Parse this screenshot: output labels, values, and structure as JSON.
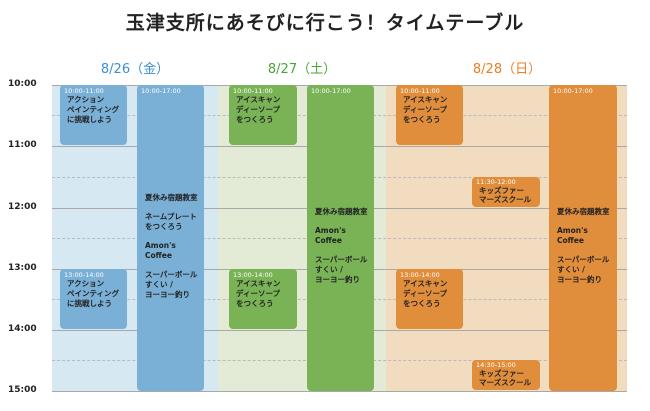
{
  "title": "玉津支所にあそびに行こう！タイムテーブル",
  "colors": {
    "blue": "#7aafd6",
    "green": "#7ab356",
    "orange": "#e08d3c"
  },
  "times": [
    "10:00",
    "11:00",
    "12:00",
    "13:00",
    "14:00",
    "15:00"
  ],
  "days": [
    {
      "label": "8/26（金）",
      "events": [
        {
          "time": "10:00-11:00",
          "name": "アクション\nペインティング\nに挑戦しよう"
        },
        {
          "time": "13:00-14:00",
          "name": "アクション\nペインティング\nに挑戦しよう"
        },
        {
          "time": "10:00-17:00",
          "items": [
            "夏休み宿題教室",
            "ネームプレート\nをつくろう",
            "Amon's Coffee",
            "スーパーボール\nすくい /\nヨーヨー釣り"
          ]
        }
      ]
    },
    {
      "label": "8/27（土）",
      "events": [
        {
          "time": "10:00-11:00",
          "name": "アイスキャン\nディーソープ\nをつくろう"
        },
        {
          "time": "13:00-14:00",
          "name": "アイスキャン\nディーソープ\nをつくろう"
        },
        {
          "time": "10:00-17:00",
          "items": [
            "夏休み宿題教室",
            "Amon's Coffee",
            "スーパーボール\nすくい /\nヨーヨー釣り"
          ]
        }
      ]
    },
    {
      "label": "8/28（日）",
      "events": [
        {
          "time": "10:00-11:00",
          "name": "アイスキャン\nディーソープ\nをつくろう"
        },
        {
          "time": "13:00-14:00",
          "name": "アイスキャン\nディーソープ\nをつくろう"
        },
        {
          "time": "11:30-12:00",
          "name": "キッズファー\nマーズスクール"
        },
        {
          "time": "14:30-15:00",
          "name": "キッズファー\nマーズスクール"
        },
        {
          "time": "10:00-17:00",
          "items": [
            "夏休み宿題教室",
            "Amon's Coffee",
            "スーパーボール\nすくい /\nヨーヨー釣り"
          ]
        }
      ]
    }
  ]
}
